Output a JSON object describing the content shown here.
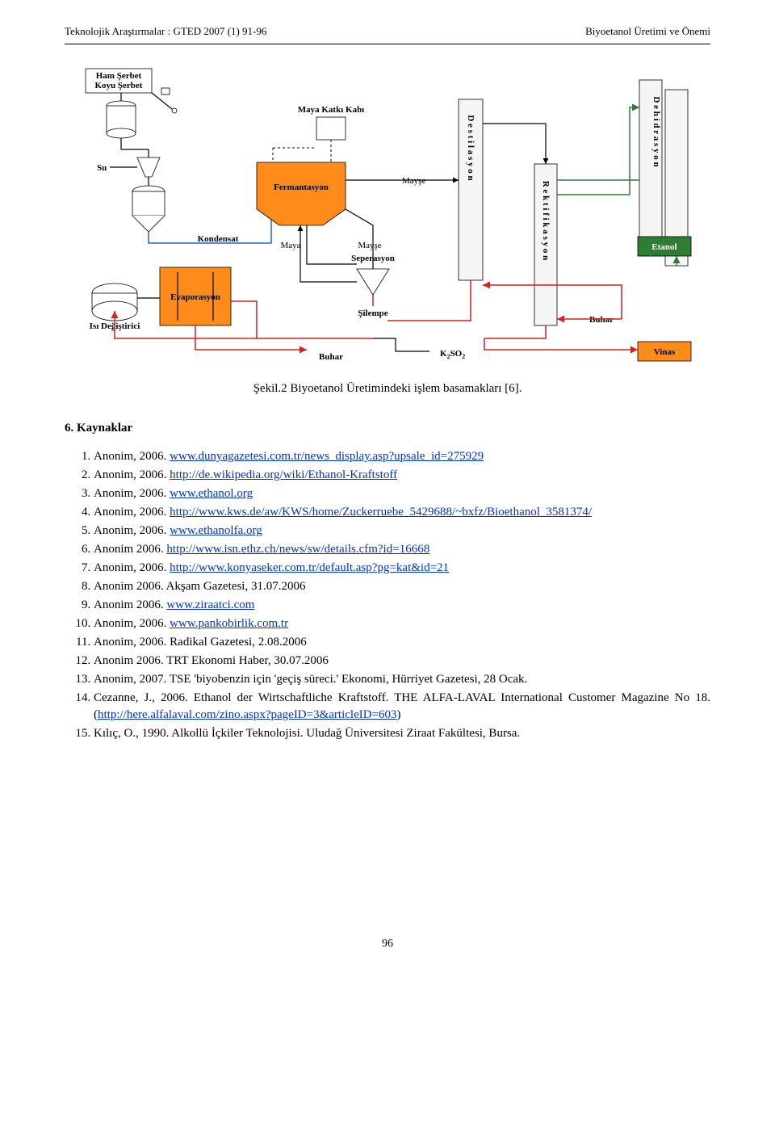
{
  "header": {
    "left": "Teknolojik Araştırmalar : GTED 2007 (1) 91-96",
    "right": "Biyoetanol Üretimi ve Önemi"
  },
  "diagram": {
    "labels": {
      "ham_serbet": "Ham Şerbet\nKoyu Şerbet",
      "su": "Su",
      "maya_katki": "Maya Katkı Kabı",
      "fermantasyon": "Fermantasyon",
      "maya": "Maya",
      "mayse": "Mayşe",
      "mayse2": "Mayşe",
      "destilasyon": "Destilasyon",
      "rektifikasyon": "Rektifikasyon",
      "dehidrasyon": "Dehidrasyon",
      "kondensat": "Kondensat",
      "isi_degistirici": "Isı Değiştirici",
      "evaporasyon": "Evaporasyon",
      "seperasyon": "Seperasyon",
      "silempe": "Şilempe",
      "buhar": "Buhar",
      "buhar2": "Buhar",
      "k2so2": "K₂SO₂",
      "etanol": "Etanol",
      "vinas": "Vinas"
    },
    "colors": {
      "orange": "#ff8c1a",
      "green": "#2e7d32",
      "blue_line": "#1e66d4",
      "red_line": "#d42020",
      "green_line": "#2e7d32",
      "bg": "#ffffff",
      "column_fill": "#f5f5f5"
    }
  },
  "caption": "Şekil.2 Biyoetanol Üretimindeki işlem basamakları [6].",
  "section_title": "6. Kaynaklar",
  "refs": [
    {
      "pre": "Anonim, 2006. ",
      "link": "www.dunyagazetesi.com.tr/news_display.asp?upsale_id=275929",
      "post": ""
    },
    {
      "pre": "Anonim, 2006. ",
      "link": "http://de.wikipedia.org/wiki/Ethanol-Kraftstoff",
      "post": ""
    },
    {
      "pre": "Anonim, 2006. ",
      "link": "www.ethanol.org",
      "post": ""
    },
    {
      "pre": "Anonim, 2006. ",
      "link": "http://www.kws.de/aw/KWS/home/Zuckerruebe_5429688/~bxfz/Bioethanol_3581374/",
      "post": ""
    },
    {
      "pre": "Anonim, 2006. ",
      "link": "www.ethanolfa.org",
      "post": ""
    },
    {
      "pre": "Anonim 2006. ",
      "link": "http://www.isn.ethz.ch/news/sw/details.cfm?id=16668",
      "post": ""
    },
    {
      "pre": "Anonim, 2006. ",
      "link": "http://www.konyaseker.com.tr/default.asp?pg=kat&id=21",
      "post": ""
    },
    {
      "pre": "Anonim 2006. Akşam Gazetesi, 31.07.2006",
      "link": "",
      "post": ""
    },
    {
      "pre": "Anonim 2006. ",
      "link": "www.ziraatci.com",
      "post": ""
    },
    {
      "pre": "Anonim, 2006. ",
      "link": "www.pankobirlik.com.tr",
      "post": ""
    },
    {
      "pre": "Anonim, 2006. Radikal Gazetesi, 2.08.2006",
      "link": "",
      "post": ""
    },
    {
      "pre": "Anonim 2006. TRT Ekonomi Haber, 30.07.2006",
      "link": "",
      "post": ""
    },
    {
      "pre": "Anonim, 2007. TSE 'biyobenzin için 'geçiş süreci.' Ekonomi, Hürriyet Gazetesi, 28 Ocak.",
      "link": "",
      "post": ""
    },
    {
      "pre": "Cezanne, J., 2006. Ethanol der Wirtschaftliche Kraftstoff. THE ALFA-LAVAL International Customer Magazine No 18. (",
      "link": "http://here.alfalaval.com/zino.aspx?pageID=3&articleID=603",
      "post": ")"
    },
    {
      "pre": "Kılıç, O., 1990. Alkollü İçkiler Teknolojisi. Uludağ Üniversitesi Ziraat Fakültesi, Bursa.",
      "link": "",
      "post": ""
    }
  ],
  "page_number": "96"
}
